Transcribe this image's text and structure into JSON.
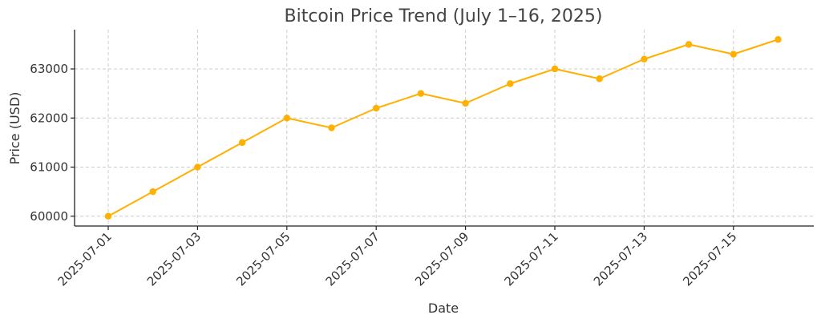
{
  "chart_data": {
    "type": "line",
    "title": "Bitcoin Price Trend (July 1–16, 2025)",
    "xlabel": "Date",
    "ylabel": "Price (USD)",
    "x": [
      "2025-07-01",
      "2025-07-02",
      "2025-07-03",
      "2025-07-04",
      "2025-07-05",
      "2025-07-06",
      "2025-07-07",
      "2025-07-08",
      "2025-07-09",
      "2025-07-10",
      "2025-07-11",
      "2025-07-12",
      "2025-07-13",
      "2025-07-14",
      "2025-07-15",
      "2025-07-16"
    ],
    "x_tick_labels": [
      "2025-07-01",
      "2025-07-03",
      "2025-07-05",
      "2025-07-07",
      "2025-07-09",
      "2025-07-11",
      "2025-07-13",
      "2025-07-15"
    ],
    "series": [
      {
        "values": [
          60000,
          60500,
          61000,
          61500,
          62000,
          61800,
          62200,
          62500,
          62300,
          62700,
          63000,
          62800,
          63200,
          63500,
          63300,
          63600
        ],
        "color": "#FFB000",
        "marker": "circle"
      }
    ],
    "y_ticks": [
      60000,
      61000,
      62000,
      63000
    ],
    "ylim": [
      59800,
      63800
    ],
    "grid": true,
    "legend": "none"
  }
}
